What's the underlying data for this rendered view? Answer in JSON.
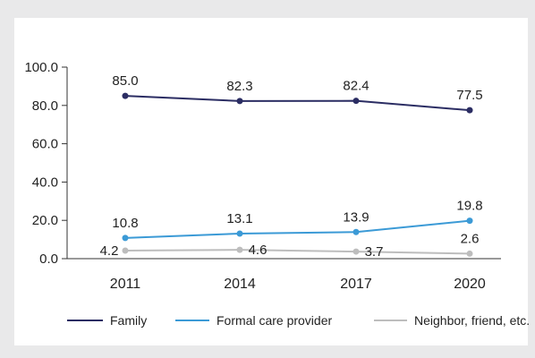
{
  "chart_data": {
    "type": "line",
    "categories": [
      "2011",
      "2014",
      "2017",
      "2020"
    ],
    "ylim": [
      0,
      100
    ],
    "yticks": [
      "0.0",
      "20.0",
      "40.0",
      "60.0",
      "80.0",
      "100.0"
    ],
    "series": [
      {
        "name": "Family",
        "values": [
          85.0,
          82.3,
          82.4,
          77.5
        ],
        "labels": [
          "85.0",
          "82.3",
          "82.4",
          "77.5"
        ],
        "color": "#2b2d63"
      },
      {
        "name": "Formal care provider",
        "values": [
          10.8,
          13.1,
          13.9,
          19.8
        ],
        "labels": [
          "10.8",
          "13.1",
          "13.9",
          "19.8"
        ],
        "color": "#3b9ad6"
      },
      {
        "name": "Neighbor, friend, etc.",
        "values": [
          4.2,
          4.6,
          3.7,
          2.6
        ],
        "labels": [
          "4.2",
          "4.6",
          "3.7",
          "2.6"
        ],
        "color": "#bdbdbd"
      }
    ],
    "legend_position": "bottom",
    "grid": false
  }
}
